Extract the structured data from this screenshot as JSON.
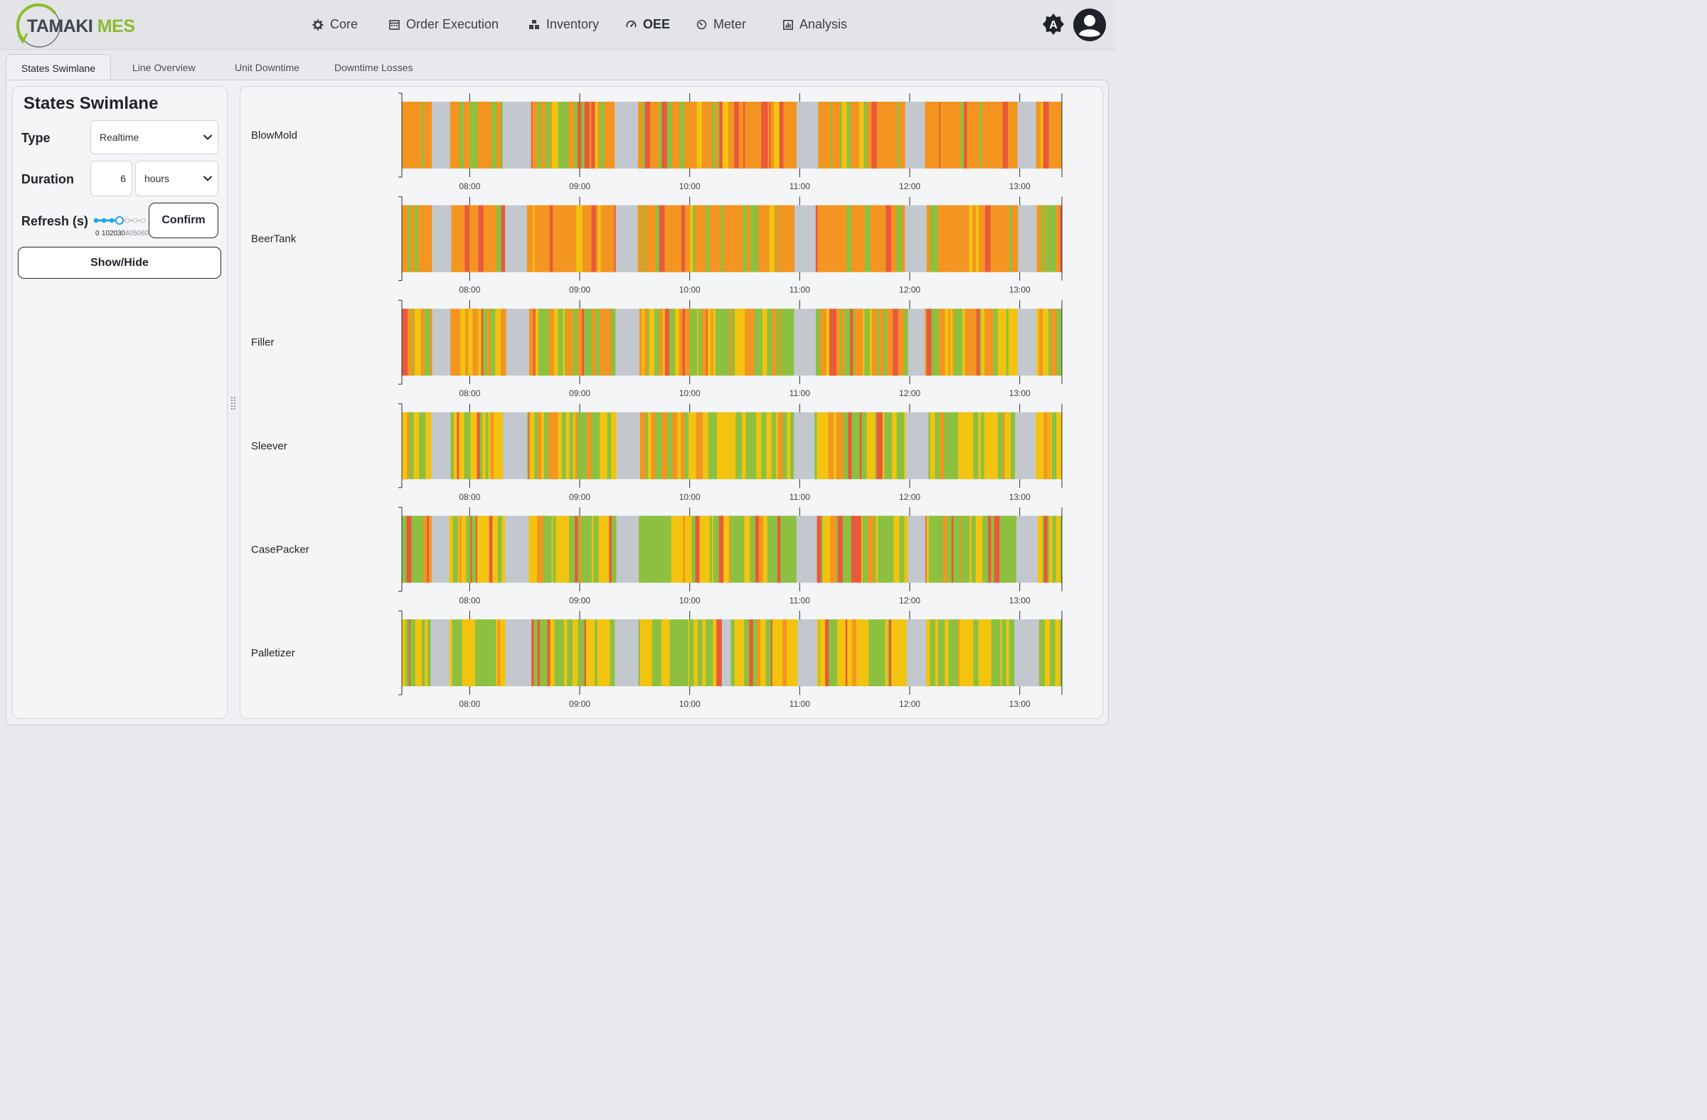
{
  "app": {
    "logo_text_primary": "TAMAKI",
    "logo_text_accent": "MES",
    "logo_colors": {
      "primary": "#3f4750",
      "accent": "#8dbb2e"
    }
  },
  "nav": {
    "items": [
      {
        "label": "Core",
        "icon": "gear-icon"
      },
      {
        "label": "Order Execution",
        "icon": "calendar-icon"
      },
      {
        "label": "Inventory",
        "icon": "boxes-icon"
      },
      {
        "label": "OEE",
        "icon": "gauge-icon",
        "active": true
      },
      {
        "label": "Meter",
        "icon": "meter-icon"
      },
      {
        "label": "Analysis",
        "icon": "chart-icon"
      }
    ],
    "theme_icon": "theme-toggle-icon",
    "theme_letter": "A",
    "account_icon": "account-icon"
  },
  "tabs": [
    {
      "label": "States Swimlane",
      "active": true
    },
    {
      "label": "Line Overview"
    },
    {
      "label": "Unit Downtime"
    },
    {
      "label": "Downtime Losses"
    }
  ],
  "controls": {
    "title": "States Swimlane",
    "type_label": "Type",
    "type_value": "Realtime",
    "duration_label": "Duration",
    "duration_value": "6",
    "duration_unit": "hours",
    "refresh_label": "Refresh (s)",
    "refresh_value": 30,
    "refresh_ticks": [
      "0",
      "10",
      "20",
      "30",
      "40",
      "50",
      "60"
    ],
    "confirm_label": "Confirm",
    "show_hide_label": "Show/Hide"
  },
  "chart_data": {
    "type": "swimlane",
    "lanes": [
      "BlowMold",
      "BeerTank",
      "Filler",
      "Sleever",
      "CasePacker",
      "Palletizer"
    ],
    "x_ticks": [
      "08:00",
      "09:00",
      "10:00",
      "11:00",
      "12:00",
      "13:00"
    ],
    "x_range": [
      "07:23",
      "13:23"
    ],
    "state_colors": {
      "running": "#8dc040",
      "slow": "#f2c40f",
      "starved": "#f39520",
      "fault": "#e9593b",
      "idle": "#c3c8cf"
    },
    "lane_mix": {
      "BlowMold": {
        "running": 0.15,
        "slow": 0.05,
        "starved": 0.7,
        "fault": 0.1
      },
      "BeerTank": {
        "running": 0.1,
        "slow": 0.05,
        "starved": 0.75,
        "fault": 0.1
      },
      "Filler": {
        "running": 0.3,
        "slow": 0.2,
        "starved": 0.4,
        "fault": 0.1
      },
      "Sleever": {
        "running": 0.38,
        "slow": 0.4,
        "starved": 0.14,
        "fault": 0.08
      },
      "CasePacker": {
        "running": 0.5,
        "slow": 0.35,
        "starved": 0.06,
        "fault": 0.09
      },
      "Palletizer": {
        "running": 0.42,
        "slow": 0.46,
        "starved": 0.02,
        "fault": 0.1
      }
    },
    "idle_gaps": [
      [
        "07:40",
        "07:48"
      ],
      [
        "08:20",
        "08:31"
      ],
      [
        "09:20",
        "09:31"
      ],
      [
        "10:20",
        "10:21"
      ],
      [
        "10:59",
        "11:08"
      ],
      [
        "11:59",
        "12:08"
      ],
      [
        "12:59",
        "13:08"
      ]
    ]
  }
}
